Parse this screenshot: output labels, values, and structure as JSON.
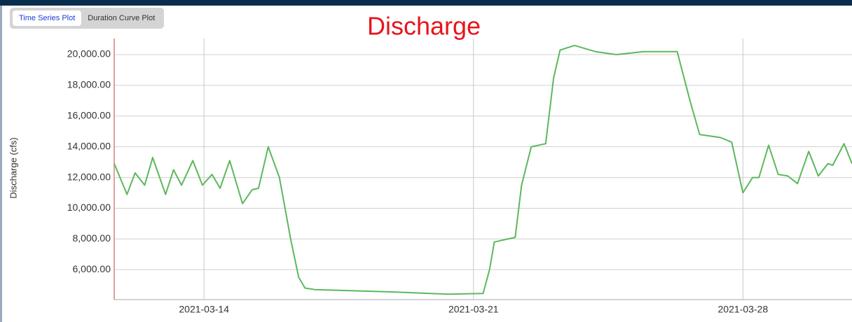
{
  "tabs": [
    "Time Series Plot",
    "Duration Curve Plot"
  ],
  "chart_data": {
    "type": "line",
    "title": "Discharge",
    "ylabel": "Discharge (cfs)",
    "x": [
      "2021-03-11T16:00",
      "2021-03-12T00:00",
      "2021-03-12T05:00",
      "2021-03-12T11:00",
      "2021-03-12T16:00",
      "2021-03-13T00:00",
      "2021-03-13T05:00",
      "2021-03-13T10:00",
      "2021-03-13T17:00",
      "2021-03-13T23:00",
      "2021-03-14T05:00",
      "2021-03-14T10:00",
      "2021-03-14T16:00",
      "2021-03-15T00:00",
      "2021-03-15T06:00",
      "2021-03-15T10:00",
      "2021-03-15T16:00",
      "2021-03-15T23:00",
      "2021-03-16T06:00",
      "2021-03-16T11:00",
      "2021-03-16T15:00",
      "2021-03-16T21:00",
      "2021-03-18T21:00",
      "2021-03-20T08:00",
      "2021-03-21T06:00",
      "2021-03-21T10:00",
      "2021-03-21T13:00",
      "2021-03-22T02:00",
      "2021-03-22T06:00",
      "2021-03-22T12:00",
      "2021-03-22T21:00",
      "2021-03-23T02:00",
      "2021-03-23T06:00",
      "2021-03-23T15:00",
      "2021-03-24T04:00",
      "2021-03-24T17:00",
      "2021-03-25T10:00",
      "2021-03-26T07:00",
      "2021-03-26T15:00",
      "2021-03-26T21:00",
      "2021-03-27T10:00",
      "2021-03-27T17:00",
      "2021-03-28T00:00",
      "2021-03-28T06:00",
      "2021-03-28T10:00",
      "2021-03-28T16:00",
      "2021-03-28T22:00",
      "2021-03-29T04:00",
      "2021-03-29T10:00",
      "2021-03-29T17:00",
      "2021-03-29T23:00",
      "2021-03-30T05:00",
      "2021-03-30T08:00",
      "2021-03-30T15:00",
      "2021-03-30T20:00"
    ],
    "series": [
      {
        "name": "Discharge",
        "color": "#5cb85c",
        "values": [
          12900,
          10900,
          12300,
          11500,
          13300,
          10900,
          12500,
          11500,
          13100,
          11500,
          12200,
          11300,
          13100,
          10300,
          11200,
          11300,
          14000,
          12000,
          8000,
          5500,
          4800,
          4700,
          4550,
          4400,
          4450,
          6000,
          7800,
          8100,
          11500,
          14000,
          14200,
          18500,
          20300,
          20600,
          20200,
          20000,
          20200,
          20200,
          17000,
          14800,
          14600,
          14300,
          11000,
          12000,
          12000,
          14100,
          12200,
          12100,
          11600,
          13700,
          12100,
          12900,
          12800,
          14200,
          12900
        ]
      }
    ],
    "xlim": [
      "2021-03-11T16:00",
      "2021-03-30T20:00"
    ],
    "xticks": [
      "2021-03-14",
      "2021-03-21",
      "2021-03-28"
    ],
    "ylim": [
      4050,
      21050
    ],
    "yticks": [
      {
        "value": 6000,
        "label": "6,000.00"
      },
      {
        "value": 8000,
        "label": "8,000.00"
      },
      {
        "value": 10000,
        "label": "10,000.00"
      },
      {
        "value": 12000,
        "label": "12,000.00"
      },
      {
        "value": 14000,
        "label": "14,000.00"
      },
      {
        "value": 16000,
        "label": "16,000.00"
      },
      {
        "value": 18000,
        "label": "18,000.00"
      },
      {
        "value": 20000,
        "label": "20,000.00"
      }
    ],
    "grid": true
  }
}
